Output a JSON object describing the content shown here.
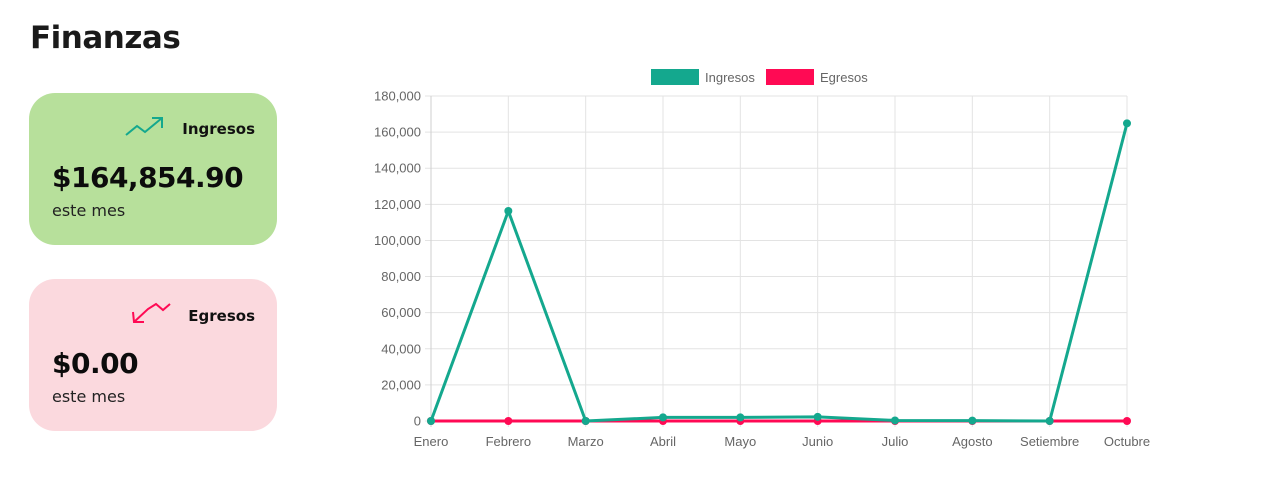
{
  "page": {
    "title": "Finanzas"
  },
  "cards": [
    {
      "label": "Ingresos",
      "amount": "$164,854.90",
      "period": "este mes",
      "icon": "trending-up-icon",
      "bg": "#b7e09b",
      "icon_color": "#14a88e"
    },
    {
      "label": "Egresos",
      "amount": "$0.00",
      "period": "este mes",
      "icon": "trending-down-icon",
      "bg": "#fbd9de",
      "icon_color": "#ff0a54"
    }
  ],
  "chart_data": {
    "type": "line",
    "title": "",
    "xlabel": "",
    "ylabel": "",
    "categories": [
      "Enero",
      "Febrero",
      "Marzo",
      "Abril",
      "Mayo",
      "Junio",
      "Julio",
      "Agosto",
      "Setiembre",
      "Octubre"
    ],
    "series": [
      {
        "name": "Ingresos",
        "color": "#14a88e",
        "values": [
          0,
          116300,
          0,
          2000,
          2000,
          2300,
          300,
          200,
          0,
          164854.9
        ]
      },
      {
        "name": "Egresos",
        "color": "#ff0a54",
        "values": [
          0,
          0,
          0,
          0,
          0,
          0,
          0,
          0,
          0,
          0
        ]
      }
    ],
    "ylim": [
      0,
      180000
    ],
    "yticks": [
      0,
      20000,
      40000,
      60000,
      80000,
      100000,
      120000,
      140000,
      160000,
      180000
    ],
    "ytick_labels": [
      "0",
      "20,000",
      "40,000",
      "60,000",
      "80,000",
      "100,000",
      "120,000",
      "140,000",
      "160,000",
      "180,000"
    ],
    "grid": true,
    "legend_position": "top"
  }
}
